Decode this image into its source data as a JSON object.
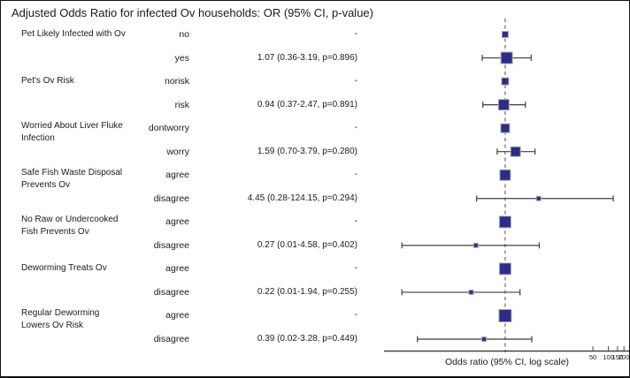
{
  "title": "Adjusted Odds Ratio for infected Ov households: OR (95% CI, p-value)",
  "colors": {
    "marker_fill": "#2b2d86",
    "marker_stroke": "#ababab",
    "whisker": "#3f3f3f",
    "ref_line": "#808080",
    "axis": "#444444",
    "tick_text": "#222222",
    "text": "#1a1a1a"
  },
  "chart_data": {
    "type": "forest",
    "title": "Adjusted Odds Ratio for infected Ov households: OR (95% CI, p-value)",
    "xlabel": "Odds ratio (95% CI, log scale)",
    "x_scale": "log",
    "xlim": [
      0.0045,
      262
    ],
    "x_ticks": [
      50,
      100,
      150,
      200
    ],
    "ref_value": 1.0,
    "grid": false,
    "rows": [
      {
        "group": "Pet Likely Infected with Ov",
        "level": "no",
        "reference": true,
        "or": 1.0,
        "ci_low": null,
        "ci_high": null,
        "p": null,
        "or_text": "-",
        "marker_size": 7
      },
      {
        "group": "",
        "level": "yes",
        "reference": false,
        "or": 1.07,
        "ci_low": 0.36,
        "ci_high": 3.19,
        "p": 0.896,
        "or_text": "1.07 (0.36-3.19, p=0.896)",
        "marker_size": 13
      },
      {
        "group": "Pet's Ov Risk",
        "level": "norisk",
        "reference": true,
        "or": 1.0,
        "ci_low": null,
        "ci_high": null,
        "p": null,
        "or_text": "-",
        "marker_size": 8
      },
      {
        "group": "",
        "level": "risk",
        "reference": false,
        "or": 0.94,
        "ci_low": 0.37,
        "ci_high": 2.47,
        "p": 0.891,
        "or_text": "0.94 (0.37-2.47, p=0.891)",
        "marker_size": 12
      },
      {
        "group": "Worried About Liver Fluke\nInfection",
        "level": "dontworry",
        "reference": true,
        "or": 1.0,
        "ci_low": null,
        "ci_high": null,
        "p": null,
        "or_text": "-",
        "marker_size": 10
      },
      {
        "group": "",
        "level": "worry",
        "reference": false,
        "or": 1.59,
        "ci_low": 0.7,
        "ci_high": 3.79,
        "p": 0.28,
        "or_text": "1.59 (0.70-3.79, p=0.280)",
        "marker_size": 11
      },
      {
        "group": "Safe Fish Waste Disposal\nPrevents Ov",
        "level": "agree",
        "reference": true,
        "or": 1.0,
        "ci_low": null,
        "ci_high": null,
        "p": null,
        "or_text": "-",
        "marker_size": 12
      },
      {
        "group": "",
        "level": "disagree",
        "reference": false,
        "or": 4.45,
        "ci_low": 0.28,
        "ci_high": 124.15,
        "p": 0.294,
        "or_text": "4.45 (0.28-124.15, p=0.294)",
        "marker_size": 5
      },
      {
        "group": "No Raw or Undercooked\nFish Prevents Ov",
        "level": "agree",
        "reference": true,
        "or": 1.0,
        "ci_low": null,
        "ci_high": null,
        "p": null,
        "or_text": "-",
        "marker_size": 13
      },
      {
        "group": "",
        "level": "disagree",
        "reference": false,
        "or": 0.27,
        "ci_low": 0.01,
        "ci_high": 4.58,
        "p": 0.402,
        "or_text": "0.27 (0.01-4.58, p=0.402)",
        "marker_size": 5
      },
      {
        "group": "Deworming Treats Ov",
        "level": "agree",
        "reference": true,
        "or": 1.0,
        "ci_low": null,
        "ci_high": null,
        "p": null,
        "or_text": "-",
        "marker_size": 13
      },
      {
        "group": "",
        "level": "disagree",
        "reference": false,
        "or": 0.22,
        "ci_low": 0.01,
        "ci_high": 1.94,
        "p": 0.255,
        "or_text": "0.22 (0.01-1.94, p=0.255)",
        "marker_size": 5
      },
      {
        "group": "Regular Deworming\nLowers Ov Risk",
        "level": "agree",
        "reference": true,
        "or": 1.0,
        "ci_low": null,
        "ci_high": null,
        "p": null,
        "or_text": "-",
        "marker_size": 14
      },
      {
        "group": "",
        "level": "disagree",
        "reference": false,
        "or": 0.39,
        "ci_low": 0.02,
        "ci_high": 3.28,
        "p": 0.449,
        "or_text": "0.39 (0.02-3.28, p=0.449)",
        "marker_size": 5
      }
    ]
  }
}
